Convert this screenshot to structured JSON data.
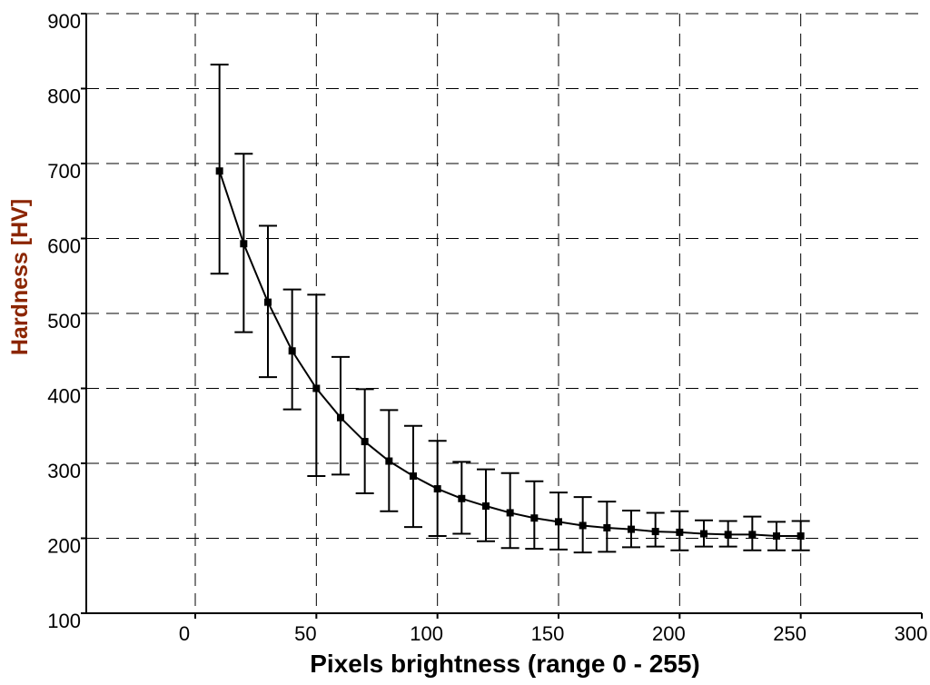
{
  "chart_data": {
    "type": "line",
    "xlabel": "Pixels brightness (range 0 - 255)",
    "ylabel": "Hardness [HV]",
    "xlim": [
      -45,
      300
    ],
    "ylim": [
      100,
      900
    ],
    "x_ticks": [
      0,
      50,
      100,
      150,
      200,
      250,
      300
    ],
    "y_ticks": [
      100,
      200,
      300,
      400,
      500,
      600,
      700,
      800,
      900
    ],
    "grid": true,
    "grid_style": "dashed",
    "line_color": "#000000",
    "error_bars": true,
    "series": [
      {
        "x": [
          10,
          20,
          30,
          40,
          50,
          60,
          70,
          80,
          90,
          100,
          110,
          120,
          130,
          140,
          150,
          160,
          170,
          180,
          190,
          200,
          210,
          220,
          230,
          240,
          250
        ],
        "y": [
          690,
          593,
          515,
          450,
          400,
          361,
          329,
          303,
          283,
          266,
          253,
          243,
          234,
          227,
          222,
          217,
          214,
          212,
          209,
          208,
          206,
          205,
          205,
          203,
          203
        ],
        "error_low": [
          553,
          475,
          415,
          372,
          283,
          285,
          260,
          236,
          215,
          203,
          206,
          196,
          187,
          186,
          185,
          181,
          182,
          188,
          189,
          184,
          189,
          189,
          184,
          184,
          184
        ],
        "error_high": [
          832,
          713,
          617,
          532,
          525,
          442,
          399,
          371,
          350,
          330,
          302,
          292,
          287,
          276,
          261,
          255,
          249,
          237,
          234,
          236,
          224,
          223,
          229,
          222,
          223
        ]
      }
    ]
  }
}
